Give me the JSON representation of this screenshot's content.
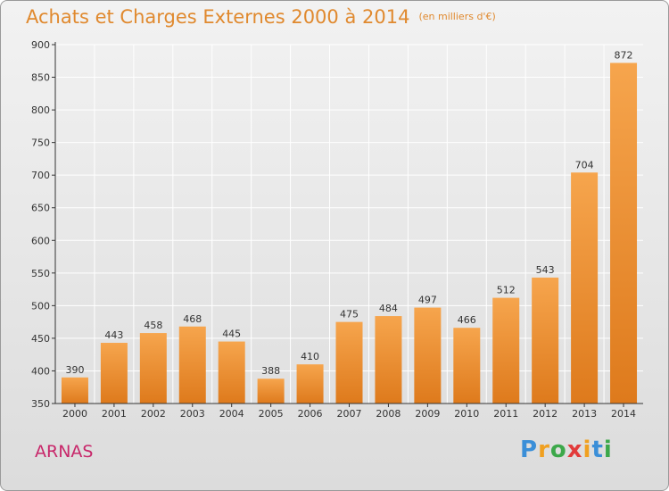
{
  "title": "Achats et Charges Externes 2000 à 2014",
  "subtitle": "(en milliers d'€)",
  "place": "ARNAS",
  "logo": {
    "text": "Proxiti",
    "letters": [
      {
        "ch": "P",
        "color": "#3b8fd8"
      },
      {
        "ch": "r",
        "color": "#f0a020"
      },
      {
        "ch": "o",
        "color": "#3ca84a"
      },
      {
        "ch": "x",
        "color": "#e23b3b"
      },
      {
        "ch": "i",
        "color": "#f0a020"
      },
      {
        "ch": "t",
        "color": "#3b8fd8"
      },
      {
        "ch": "i",
        "color": "#3ca84a"
      }
    ]
  },
  "colors": {
    "bar_light": "#f6a54d",
    "bar_dark": "#de7a1c",
    "title": "#e0892e",
    "place": "#c8276a",
    "grid": "#ffffff"
  },
  "chart_data": {
    "type": "bar",
    "title": "Achats et Charges Externes 2000 à 2014",
    "subtitle": "(en milliers d'€)",
    "categories": [
      "2000",
      "2001",
      "2002",
      "2003",
      "2004",
      "2005",
      "2006",
      "2007",
      "2008",
      "2009",
      "2010",
      "2011",
      "2012",
      "2013",
      "2014"
    ],
    "values": [
      390,
      443,
      458,
      468,
      445,
      388,
      410,
      475,
      484,
      497,
      466,
      512,
      543,
      704,
      872
    ],
    "ylim": [
      350,
      900
    ],
    "yticks": [
      350,
      400,
      450,
      500,
      550,
      600,
      650,
      700,
      750,
      800,
      850,
      900
    ],
    "grid": true,
    "xlabel": "",
    "ylabel": ""
  }
}
